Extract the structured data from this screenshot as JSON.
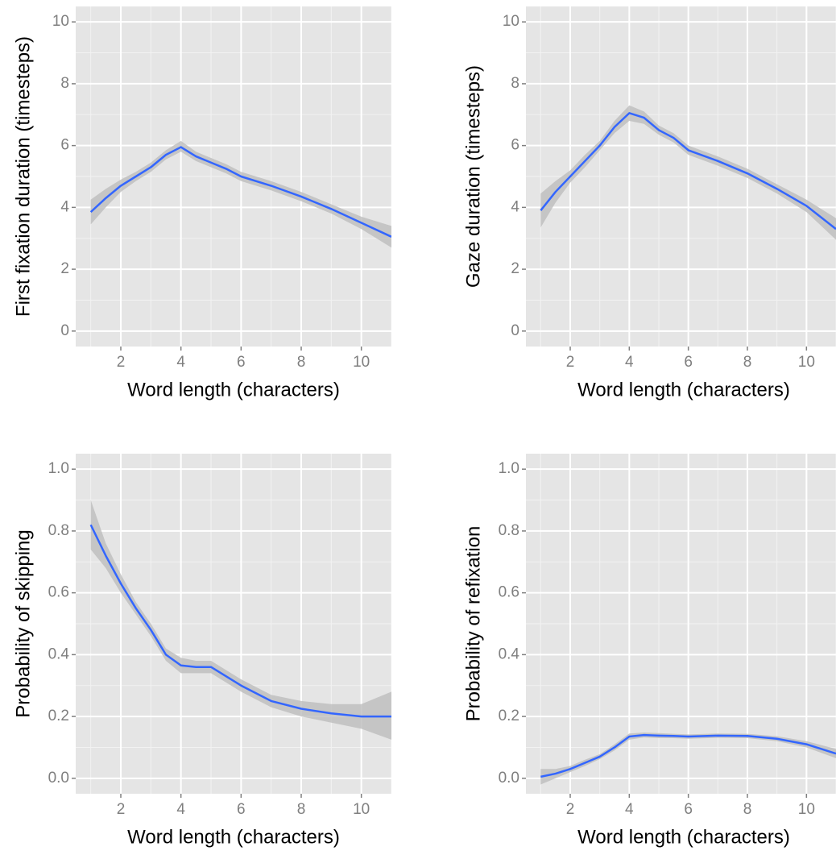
{
  "chart_data": [
    {
      "type": "line",
      "xlabel": "Word length (characters)",
      "ylabel": "First fixation duration (timesteps)",
      "x": [
        1,
        1.5,
        2,
        2.5,
        3,
        3.5,
        4,
        4.5,
        5,
        5.5,
        6,
        7,
        8,
        9,
        10,
        11
      ],
      "values": [
        3.85,
        4.3,
        4.7,
        5.0,
        5.3,
        5.7,
        5.95,
        5.65,
        5.45,
        5.25,
        5.0,
        4.7,
        4.35,
        3.95,
        3.5,
        3.05
      ],
      "band": {
        "lower": [
          3.45,
          4.0,
          4.5,
          4.85,
          5.15,
          5.55,
          5.8,
          5.5,
          5.3,
          5.1,
          4.85,
          4.55,
          4.2,
          3.8,
          3.3,
          2.7
        ],
        "upper": [
          4.25,
          4.6,
          4.9,
          5.15,
          5.45,
          5.85,
          6.15,
          5.8,
          5.6,
          5.4,
          5.15,
          4.85,
          4.5,
          4.1,
          3.7,
          3.4
        ]
      },
      "color": "#3366ff",
      "band_color": "#bdbdbd",
      "xlim": [
        0.5,
        11
      ],
      "ylim": [
        -0.5,
        10.5
      ],
      "xticks": [
        2,
        4,
        6,
        8,
        10
      ],
      "yticks": [
        0,
        2,
        4,
        6,
        8,
        10
      ],
      "minor_xticks": [
        1,
        3,
        5,
        7,
        9,
        11
      ],
      "minor_yticks": [
        1,
        3,
        5,
        7,
        9
      ],
      "grid": true
    },
    {
      "type": "line",
      "xlabel": "Word length (characters)",
      "ylabel": "Gaze duration (timesteps)",
      "x": [
        1,
        1.5,
        2,
        2.5,
        3,
        3.5,
        4,
        4.5,
        5,
        5.5,
        6,
        7,
        8,
        9,
        10,
        11
      ],
      "values": [
        3.9,
        4.5,
        5.0,
        5.5,
        6.0,
        6.6,
        7.05,
        6.9,
        6.5,
        6.25,
        5.85,
        5.5,
        5.1,
        4.6,
        4.05,
        3.3
      ],
      "band": {
        "lower": [
          3.35,
          4.15,
          4.8,
          5.3,
          5.85,
          6.4,
          6.8,
          6.7,
          6.35,
          6.1,
          5.7,
          5.35,
          4.95,
          4.45,
          3.85,
          2.95
        ],
        "upper": [
          4.45,
          4.85,
          5.2,
          5.7,
          6.15,
          6.8,
          7.3,
          7.1,
          6.65,
          6.4,
          6.0,
          5.65,
          5.25,
          4.75,
          4.25,
          3.65
        ]
      },
      "color": "#3366ff",
      "band_color": "#bdbdbd",
      "xlim": [
        0.5,
        11
      ],
      "ylim": [
        -0.5,
        10.5
      ],
      "xticks": [
        2,
        4,
        6,
        8,
        10
      ],
      "yticks": [
        0,
        2,
        4,
        6,
        8,
        10
      ],
      "minor_xticks": [
        1,
        3,
        5,
        7,
        9,
        11
      ],
      "minor_yticks": [
        1,
        3,
        5,
        7,
        9
      ],
      "grid": true
    },
    {
      "type": "line",
      "xlabel": "Word length (characters)",
      "ylabel": "Probability of skipping",
      "x": [
        1,
        1.5,
        2,
        2.5,
        3,
        3.5,
        4,
        4.5,
        5,
        5.5,
        6,
        7,
        8,
        9,
        10,
        11
      ],
      "values": [
        0.82,
        0.72,
        0.63,
        0.55,
        0.48,
        0.4,
        0.365,
        0.36,
        0.36,
        0.33,
        0.3,
        0.25,
        0.225,
        0.21,
        0.2,
        0.2
      ],
      "band": {
        "lower": [
          0.74,
          0.68,
          0.6,
          0.53,
          0.46,
          0.38,
          0.34,
          0.34,
          0.34,
          0.31,
          0.28,
          0.23,
          0.2,
          0.18,
          0.16,
          0.125
        ],
        "upper": [
          0.9,
          0.76,
          0.66,
          0.57,
          0.5,
          0.42,
          0.39,
          0.38,
          0.38,
          0.35,
          0.32,
          0.27,
          0.25,
          0.24,
          0.24,
          0.28
        ]
      },
      "color": "#3366ff",
      "band_color": "#bdbdbd",
      "xlim": [
        0.5,
        11
      ],
      "ylim": [
        -0.05,
        1.05
      ],
      "xticks": [
        2,
        4,
        6,
        8,
        10
      ],
      "yticks": [
        {
          "value": 0,
          "label": "0.0"
        },
        {
          "value": 0.2,
          "label": "0.2"
        },
        {
          "value": 0.4,
          "label": "0.4"
        },
        {
          "value": 0.6,
          "label": "0.6"
        },
        {
          "value": 0.8,
          "label": "0.8"
        },
        {
          "value": 1,
          "label": "1.0"
        }
      ],
      "minor_xticks": [
        1,
        3,
        5,
        7,
        9,
        11
      ],
      "minor_yticks": [
        0.1,
        0.3,
        0.5,
        0.7,
        0.9
      ],
      "grid": true
    },
    {
      "type": "line",
      "xlabel": "Word length (characters)",
      "ylabel": "Probability of refixation",
      "x": [
        1,
        1.5,
        2,
        2.5,
        3,
        3.5,
        4,
        4.5,
        5,
        5.5,
        6,
        7,
        8,
        9,
        10,
        11
      ],
      "values": [
        0.005,
        0.015,
        0.03,
        0.05,
        0.07,
        0.1,
        0.135,
        0.14,
        0.138,
        0.137,
        0.135,
        0.138,
        0.137,
        0.128,
        0.11,
        0.08
      ],
      "band": {
        "lower": [
          -0.02,
          0.0,
          0.02,
          0.04,
          0.062,
          0.09,
          0.125,
          0.132,
          0.13,
          0.13,
          0.128,
          0.131,
          0.13,
          0.12,
          0.1,
          0.065
        ],
        "upper": [
          0.03,
          0.03,
          0.04,
          0.06,
          0.078,
          0.11,
          0.145,
          0.148,
          0.146,
          0.144,
          0.142,
          0.145,
          0.144,
          0.136,
          0.12,
          0.095
        ]
      },
      "color": "#3366ff",
      "band_color": "#bdbdbd",
      "xlim": [
        0.5,
        11
      ],
      "ylim": [
        -0.05,
        1.05
      ],
      "xticks": [
        2,
        4,
        6,
        8,
        10
      ],
      "yticks": [
        {
          "value": 0,
          "label": "0.0"
        },
        {
          "value": 0.2,
          "label": "0.2"
        },
        {
          "value": 0.4,
          "label": "0.4"
        },
        {
          "value": 0.6,
          "label": "0.6"
        },
        {
          "value": 0.8,
          "label": "0.8"
        },
        {
          "value": 1,
          "label": "1.0"
        }
      ],
      "minor_xticks": [
        1,
        3,
        5,
        7,
        9,
        11
      ],
      "minor_yticks": [
        0.1,
        0.3,
        0.5,
        0.7,
        0.9
      ],
      "grid": true
    }
  ]
}
